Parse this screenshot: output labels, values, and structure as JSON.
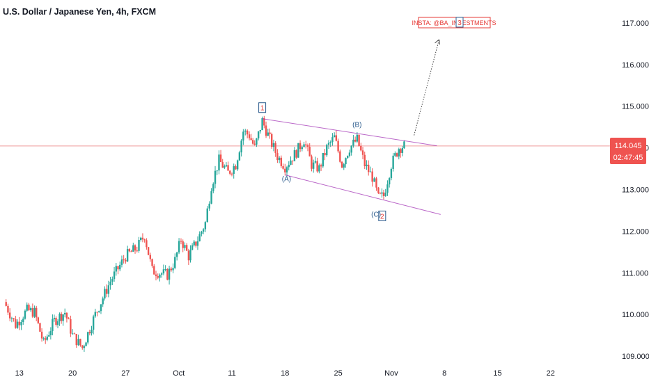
{
  "title": "U.S. Dollar / Japanese Yen, 4h, FXCM",
  "watermark": "INSTA: @BA_INVESTMENTS",
  "colors": {
    "up": "#26a69a",
    "down": "#ef5350",
    "text": "#131722",
    "axis_text": "#131722",
    "wave": "#2a5a8c",
    "trendline": "#9c27b0",
    "accent_red": "#e53935"
  },
  "last_price_label": "114.045",
  "countdown_label": "02:47:45",
  "chart_data": {
    "type": "candlestick",
    "y_ticks": [
      "117.000",
      "116.000",
      "115.000",
      "114.000",
      "113.000",
      "112.000",
      "111.000",
      "110.000",
      "109.000"
    ],
    "ylim": [
      108.85,
      117.4
    ],
    "x_ticks": [
      "13",
      "20",
      "27",
      "Oct",
      "11",
      "18",
      "25",
      "Nov",
      "8",
      "15",
      "22"
    ],
    "anchors": [
      {
        "d": 0,
        "p": 110.3
      },
      {
        "d": 1.5,
        "p": 109.75
      },
      {
        "d": 3,
        "p": 110.1
      },
      {
        "d": 4,
        "p": 110.05
      },
      {
        "d": 5.2,
        "p": 109.3
      },
      {
        "d": 6.6,
        "p": 109.85
      },
      {
        "d": 8,
        "p": 110.05
      },
      {
        "d": 9,
        "p": 109.5
      },
      {
        "d": 10.3,
        "p": 109.2
      },
      {
        "d": 12,
        "p": 110.0
      },
      {
        "d": 14,
        "p": 110.8
      },
      {
        "d": 16,
        "p": 111.4
      },
      {
        "d": 17.5,
        "p": 111.6
      },
      {
        "d": 18.5,
        "p": 111.9
      },
      {
        "d": 19.5,
        "p": 111.05
      },
      {
        "d": 20.5,
        "p": 111.0
      },
      {
        "d": 21.5,
        "p": 110.95
      },
      {
        "d": 22.5,
        "p": 111.3
      },
      {
        "d": 23.3,
        "p": 111.8
      },
      {
        "d": 24.3,
        "p": 111.4
      },
      {
        "d": 25.5,
        "p": 111.8
      },
      {
        "d": 26.5,
        "p": 112.2
      },
      {
        "d": 27.3,
        "p": 113.1
      },
      {
        "d": 28.3,
        "p": 113.7
      },
      {
        "d": 29.5,
        "p": 113.4
      },
      {
        "d": 30.5,
        "p": 113.6
      },
      {
        "d": 31.5,
        "p": 114.4
      },
      {
        "d": 32.3,
        "p": 114.3
      },
      {
        "d": 33,
        "p": 114.0
      },
      {
        "d": 34,
        "p": 114.65
      },
      {
        "d": 35,
        "p": 114.2
      },
      {
        "d": 36,
        "p": 113.8
      },
      {
        "d": 37,
        "p": 113.55
      },
      {
        "d": 38.5,
        "p": 113.9
      },
      {
        "d": 39.5,
        "p": 114.2
      },
      {
        "d": 40.5,
        "p": 113.6
      },
      {
        "d": 41.5,
        "p": 113.5
      },
      {
        "d": 42.5,
        "p": 114.0
      },
      {
        "d": 43.5,
        "p": 114.25
      },
      {
        "d": 44.5,
        "p": 113.6
      },
      {
        "d": 45.5,
        "p": 114.0
      },
      {
        "d": 46.5,
        "p": 114.2
      },
      {
        "d": 47.5,
        "p": 113.6
      },
      {
        "d": 48.5,
        "p": 113.3
      },
      {
        "d": 49.3,
        "p": 112.8
      },
      {
        "d": 50,
        "p": 112.85
      },
      {
        "d": 51,
        "p": 113.6
      },
      {
        "d": 52,
        "p": 114.0
      },
      {
        "d": 52.7,
        "p": 114.05
      }
    ],
    "annotations": {
      "wave_1": "1",
      "wave_2": "2",
      "wave_3": "3",
      "wave_A": "(A)",
      "wave_B": "(B)",
      "wave_C": "(C)"
    },
    "annotation_points": {
      "wave_1": {
        "d": 34,
        "p": 114.95
      },
      "wave_2": {
        "d": 49.8,
        "p": 112.35
      },
      "wave_3": {
        "d": 60,
        "p": 117.0
      },
      "wave_A": {
        "d": 37.2,
        "p": 113.2
      },
      "wave_B": {
        "d": 46.5,
        "p": 114.5
      },
      "wave_C": {
        "d": 49.0,
        "p": 112.35
      }
    },
    "upper_trendline": [
      {
        "d": 34,
        "p": 114.7
      },
      {
        "d": 57,
        "p": 114.05
      }
    ],
    "lower_trendline": [
      {
        "d": 37,
        "p": 113.35
      },
      {
        "d": 57.5,
        "p": 112.4
      }
    ],
    "projection": [
      {
        "d": 54,
        "p": 114.3
      },
      {
        "d": 57.3,
        "p": 116.6
      }
    ],
    "last_price": 114.045,
    "x_tick_positions": [
      2,
      9,
      16,
      23,
      30,
      37,
      44,
      51,
      58,
      65,
      72
    ]
  }
}
